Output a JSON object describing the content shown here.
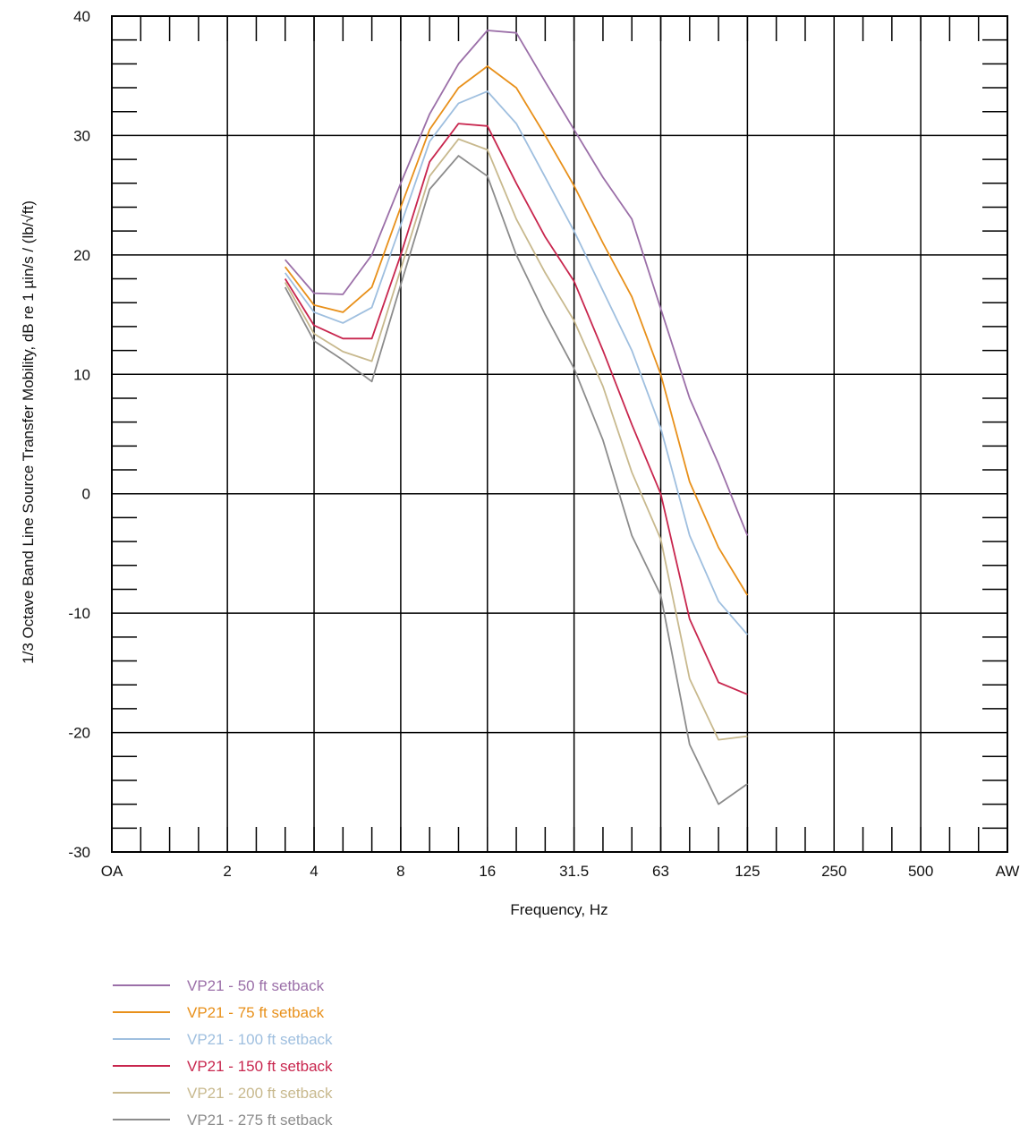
{
  "chart_data": {
    "type": "line",
    "xlabel": "Frequency, Hz",
    "ylabel": "1/3 Octave Band Line Source Transfer Mobility, dB re 1  µin/s / (lb/√ft)",
    "ylim": [
      -30,
      40
    ],
    "yticks": [
      40,
      30,
      20,
      10,
      0,
      -10,
      -20,
      -30
    ],
    "ytick_labels": [
      "40",
      "30",
      "20",
      "10",
      "0",
      "-10",
      "-20",
      "-30"
    ],
    "x_categories": [
      "OA",
      "1",
      "1.25",
      "1.6",
      "2",
      "2.5",
      "3.15",
      "4",
      "5",
      "6.3",
      "8",
      "10",
      "12.5",
      "16",
      "20",
      "25",
      "31.5",
      "40",
      "50",
      "63",
      "80",
      "100",
      "125",
      "160",
      "200",
      "250",
      "315",
      "400",
      "500",
      "630",
      "800",
      "AW"
    ],
    "x_tick_labels": [
      "OA",
      "2",
      "4",
      "8",
      "16",
      "31.5",
      "63",
      "125",
      "250",
      "500",
      "AW"
    ],
    "grid": true,
    "legend_position": "bottom-left",
    "series": [
      {
        "name": "VP21 - 50 ft setback",
        "color": "#9b6fa8",
        "x": [
          "3.15",
          "4",
          "5",
          "6.3",
          "8",
          "10",
          "12.5",
          "16",
          "20",
          "25",
          "31.5",
          "40",
          "50",
          "63",
          "80",
          "100",
          "125"
        ],
        "values": [
          19.6,
          16.8,
          16.7,
          20.0,
          26.0,
          31.8,
          36.0,
          38.8,
          38.6,
          34.5,
          30.5,
          26.5,
          23.0,
          15.5,
          8.0,
          2.5,
          -3.5
        ]
      },
      {
        "name": "VP21 - 75 ft setback",
        "color": "#e8901a",
        "x": [
          "3.15",
          "4",
          "5",
          "6.3",
          "8",
          "10",
          "12.5",
          "16",
          "20",
          "25",
          "31.5",
          "40",
          "50",
          "63",
          "80",
          "100",
          "125"
        ],
        "values": [
          19.0,
          15.8,
          15.2,
          17.3,
          24.0,
          30.5,
          34.0,
          35.8,
          34.0,
          30.0,
          25.8,
          21.0,
          16.5,
          10.0,
          1.0,
          -4.5,
          -8.5
        ]
      },
      {
        "name": "VP21 - 100 ft setback",
        "color": "#9fbfdf",
        "x": [
          "3.15",
          "4",
          "5",
          "6.3",
          "8",
          "10",
          "12.5",
          "16",
          "20",
          "25",
          "31.5",
          "40",
          "50",
          "63",
          "80",
          "100",
          "125"
        ],
        "values": [
          18.5,
          15.2,
          14.3,
          15.6,
          22.5,
          29.5,
          32.7,
          33.7,
          31.0,
          26.5,
          22.0,
          17.0,
          12.0,
          5.5,
          -3.5,
          -9.0,
          -11.8
        ]
      },
      {
        "name": "VP21 - 150 ft setback",
        "color": "#c8264e",
        "x": [
          "3.15",
          "4",
          "5",
          "6.3",
          "8",
          "10",
          "12.5",
          "16",
          "20",
          "25",
          "31.5",
          "40",
          "50",
          "63",
          "80",
          "100",
          "125"
        ],
        "values": [
          18.0,
          14.1,
          13.0,
          13.0,
          20.0,
          27.8,
          31.0,
          30.8,
          26.0,
          21.5,
          17.8,
          12.0,
          5.8,
          0.0,
          -10.5,
          -15.8,
          -16.8
        ]
      },
      {
        "name": "VP21 - 200 ft setback",
        "color": "#c8b98e",
        "x": [
          "3.15",
          "4",
          "5",
          "6.3",
          "8",
          "10",
          "12.5",
          "16",
          "20",
          "25",
          "31.5",
          "40",
          "50",
          "63",
          "80",
          "100",
          "125"
        ],
        "values": [
          17.7,
          13.4,
          11.9,
          11.1,
          18.8,
          26.6,
          29.7,
          28.8,
          23.0,
          18.5,
          14.5,
          9.0,
          1.8,
          -3.8,
          -15.5,
          -20.6,
          -20.3
        ]
      },
      {
        "name": "VP21 - 275 ft setback",
        "color": "#8c8c8c",
        "x": [
          "3.15",
          "4",
          "5",
          "6.3",
          "8",
          "10",
          "12.5",
          "16",
          "20",
          "25",
          "31.5",
          "40",
          "50",
          "63",
          "80",
          "100",
          "125"
        ],
        "values": [
          17.3,
          12.8,
          11.2,
          9.4,
          17.5,
          25.5,
          28.3,
          26.6,
          20.0,
          15.0,
          10.5,
          4.5,
          -3.5,
          -8.5,
          -21.0,
          -26.0,
          -24.3
        ]
      }
    ]
  }
}
